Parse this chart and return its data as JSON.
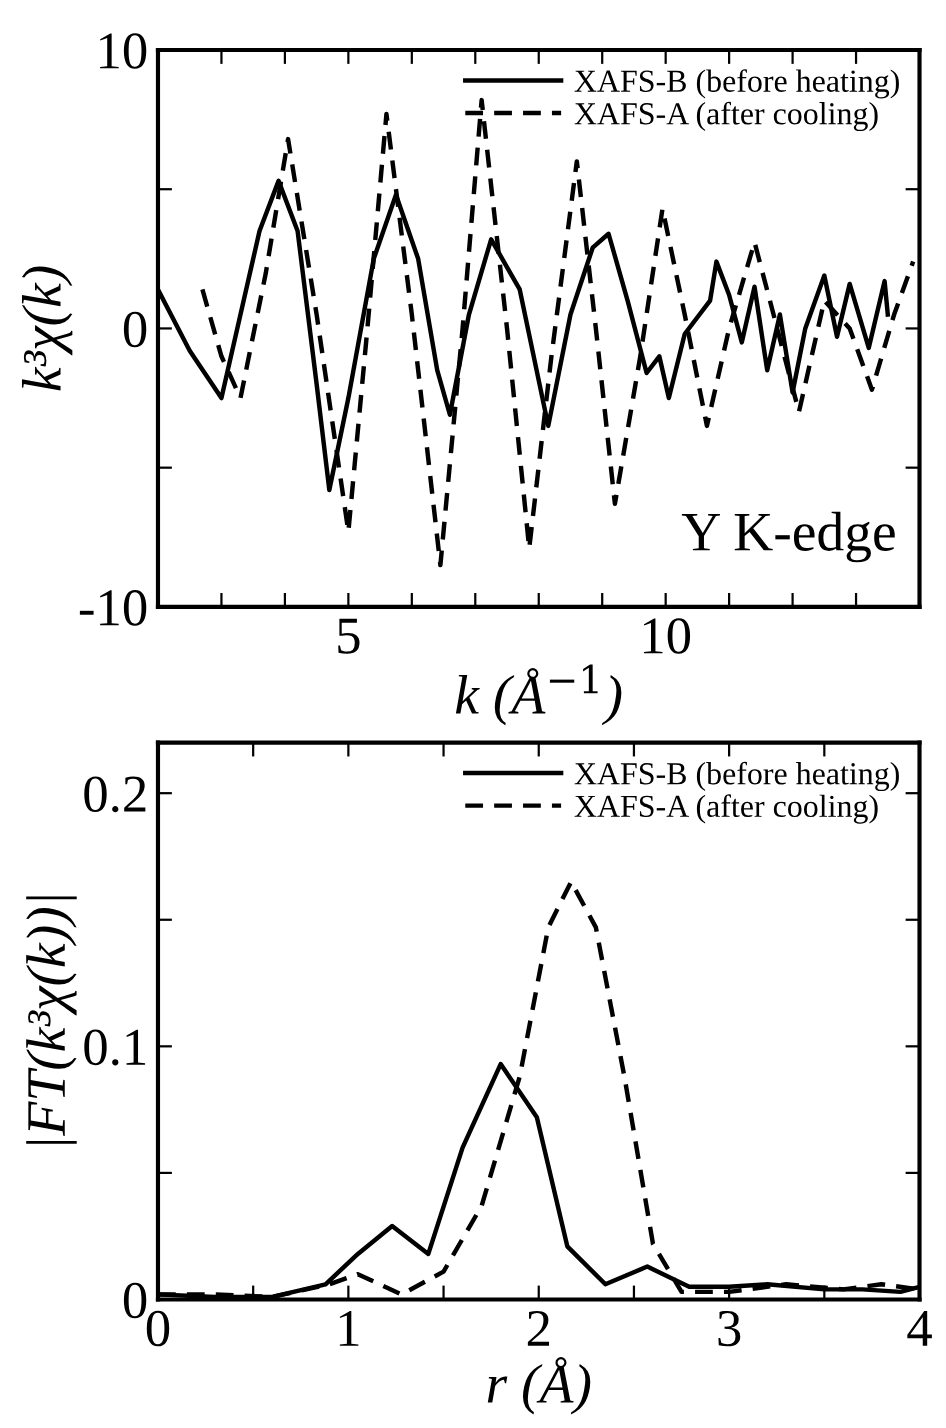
{
  "chart_data": [
    {
      "type": "line",
      "xlabel": "k (Å$^{−1}$)",
      "ylabel": "k³χ(k)",
      "annotations": [
        "Y K-edge"
      ],
      "legend": "top right",
      "grid": false,
      "xlim": [
        2,
        14
      ],
      "xticks": [
        {
          "value": 2,
          "label": null
        },
        {
          "value": 3,
          "label": null
        },
        {
          "value": 4,
          "label": null
        },
        5,
        {
          "value": 6,
          "label": null
        },
        {
          "value": 7,
          "label": null
        },
        {
          "value": 8,
          "label": null
        },
        {
          "value": 9,
          "label": null
        },
        10,
        {
          "value": 11,
          "label": null
        },
        {
          "value": 12,
          "label": null
        },
        {
          "value": 13,
          "label": null
        }
      ],
      "ylim": [
        -10,
        10
      ],
      "yticks": [
        {
          "value": -10,
          "label": "-10"
        },
        {
          "value": -5,
          "label": null
        },
        0,
        {
          "value": 5,
          "label": null
        },
        10
      ],
      "series": [
        {
          "name": "XAFS-B (before heating)",
          "color": "#000000",
          "line_style": "solid",
          "x": [
            2.0,
            2.5,
            3.0,
            3.3,
            3.6,
            3.9,
            4.2,
            4.5,
            4.7,
            5.0,
            5.4,
            5.75,
            6.1,
            6.4,
            6.6,
            6.9,
            7.25,
            7.7,
            8.15,
            8.5,
            8.85,
            9.1,
            9.4,
            9.7,
            9.9,
            10.05,
            10.3,
            10.7,
            10.8,
            11.0,
            11.2,
            11.4,
            11.6,
            11.8,
            12.0,
            12.2,
            12.5,
            12.7,
            12.9,
            13.2,
            13.45,
            13.5
          ],
          "values": [
            1.4,
            -0.8,
            -2.5,
            0.5,
            3.5,
            5.3,
            3.5,
            -2.0,
            -5.8,
            -2.5,
            2.5,
            4.8,
            2.5,
            -1.5,
            -3.1,
            0.5,
            3.2,
            1.4,
            -3.5,
            0.5,
            2.9,
            3.4,
            1.0,
            -1.6,
            -1.0,
            -2.5,
            -0.2,
            1.0,
            2.4,
            1.2,
            -0.5,
            1.5,
            -1.5,
            0.5,
            -2.3,
            0.0,
            1.9,
            -0.3,
            1.6,
            -0.7,
            1.7,
            0.5
          ]
        },
        {
          "name": "XAFS-A (after cooling)",
          "color": "#000000",
          "line_style": "dashed",
          "x": [
            2.7,
            3.0,
            3.3,
            3.7,
            4.05,
            4.5,
            5.0,
            5.3,
            5.6,
            6.0,
            6.45,
            6.8,
            7.1,
            7.5,
            7.85,
            8.2,
            8.6,
            8.9,
            9.2,
            9.6,
            9.95,
            10.3,
            10.65,
            11.0,
            11.4,
            11.7,
            12.1,
            12.5,
            12.9,
            13.25,
            13.6,
            13.9
          ],
          "values": [
            1.4,
            -1.0,
            -2.5,
            2.0,
            6.8,
            0.5,
            -7.3,
            0.0,
            7.7,
            0.5,
            -8.5,
            0.0,
            8.2,
            0.0,
            -7.9,
            -1.0,
            6.0,
            0.0,
            -6.3,
            -1.0,
            4.3,
            0.5,
            -3.5,
            0.0,
            3.1,
            0.5,
            -3.0,
            1.0,
            0.0,
            -2.2,
            0.5,
            2.4
          ]
        }
      ]
    },
    {
      "type": "line",
      "xlabel": "r (Å)",
      "ylabel": "|FT(k³χ(k))|",
      "legend": "top right",
      "grid": false,
      "xlim": [
        0,
        4
      ],
      "xticks": [
        0,
        {
          "value": 0.5,
          "label": null
        },
        1,
        {
          "value": 1.5,
          "label": null
        },
        2,
        {
          "value": 2.5,
          "label": null
        },
        3,
        {
          "value": 3.5,
          "label": null
        },
        4
      ],
      "ylim": [
        0,
        0.22
      ],
      "yticks": [
        0,
        {
          "value": 0.05,
          "label": null
        },
        0.1,
        {
          "value": 0.15,
          "label": null
        },
        0.2
      ],
      "series": [
        {
          "name": "XAFS-B (before heating)",
          "color": "#000000",
          "line_style": "solid",
          "x": [
            0.0,
            0.3,
            0.6,
            0.88,
            1.05,
            1.23,
            1.42,
            1.6,
            1.8,
            1.99,
            2.15,
            2.35,
            2.57,
            2.79,
            3.0,
            3.2,
            3.5,
            3.7,
            3.9,
            4.0
          ],
          "values": [
            0.002,
            0.001,
            0.001,
            0.006,
            0.018,
            0.029,
            0.018,
            0.06,
            0.093,
            0.072,
            0.021,
            0.006,
            0.013,
            0.005,
            0.005,
            0.006,
            0.004,
            0.004,
            0.003,
            0.005
          ]
        },
        {
          "name": "XAFS-A (after cooling)",
          "color": "#000000",
          "line_style": "dashed",
          "x": [
            0.0,
            0.3,
            0.6,
            0.9,
            1.05,
            1.28,
            1.5,
            1.7,
            1.9,
            2.05,
            2.17,
            2.3,
            2.45,
            2.6,
            2.75,
            3.0,
            3.3,
            3.6,
            3.8,
            4.0
          ],
          "values": [
            0.002,
            0.002,
            0.001,
            0.006,
            0.01,
            0.002,
            0.011,
            0.037,
            0.088,
            0.147,
            0.165,
            0.147,
            0.088,
            0.022,
            0.003,
            0.003,
            0.006,
            0.004,
            0.006,
            0.004
          ]
        }
      ]
    }
  ]
}
